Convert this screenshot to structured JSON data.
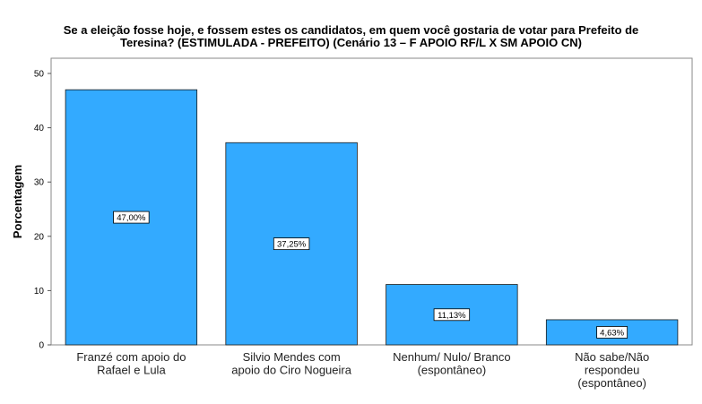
{
  "title": {
    "line1": "Se a eleição fosse hoje, e fossem estes os candidatos, em quem você gostaria de votar  para Prefeito de",
    "line2": "Teresina? (ESTIMULADA - PREFEITO) (Cenário 13 – F APOIO RF/L X SM APOIO CN)"
  },
  "chart_data": {
    "type": "bar",
    "ylabel": "Porcentagem",
    "xlabel": "",
    "ylim": [
      0,
      50
    ],
    "yticks": [
      0,
      10,
      20,
      30,
      40,
      50
    ],
    "grid": false,
    "categories": [
      [
        "Franzé com apoio do",
        "Rafael e Lula"
      ],
      [
        "Silvio Mendes com",
        "apoio do Ciro Nogueira"
      ],
      [
        "Nenhum/ Nulo/ Branco",
        "(espontâneo)"
      ],
      [
        "Não sabe/Não",
        "respondeu",
        "(espontâneo)"
      ]
    ],
    "values": [
      47.0,
      37.25,
      11.13,
      4.63
    ],
    "value_labels": [
      "47,00%",
      "37,25%",
      "11,13%",
      "4,63%"
    ],
    "bar_color": "#33aaff",
    "bar_edge_color": "#1a1a1a"
  }
}
